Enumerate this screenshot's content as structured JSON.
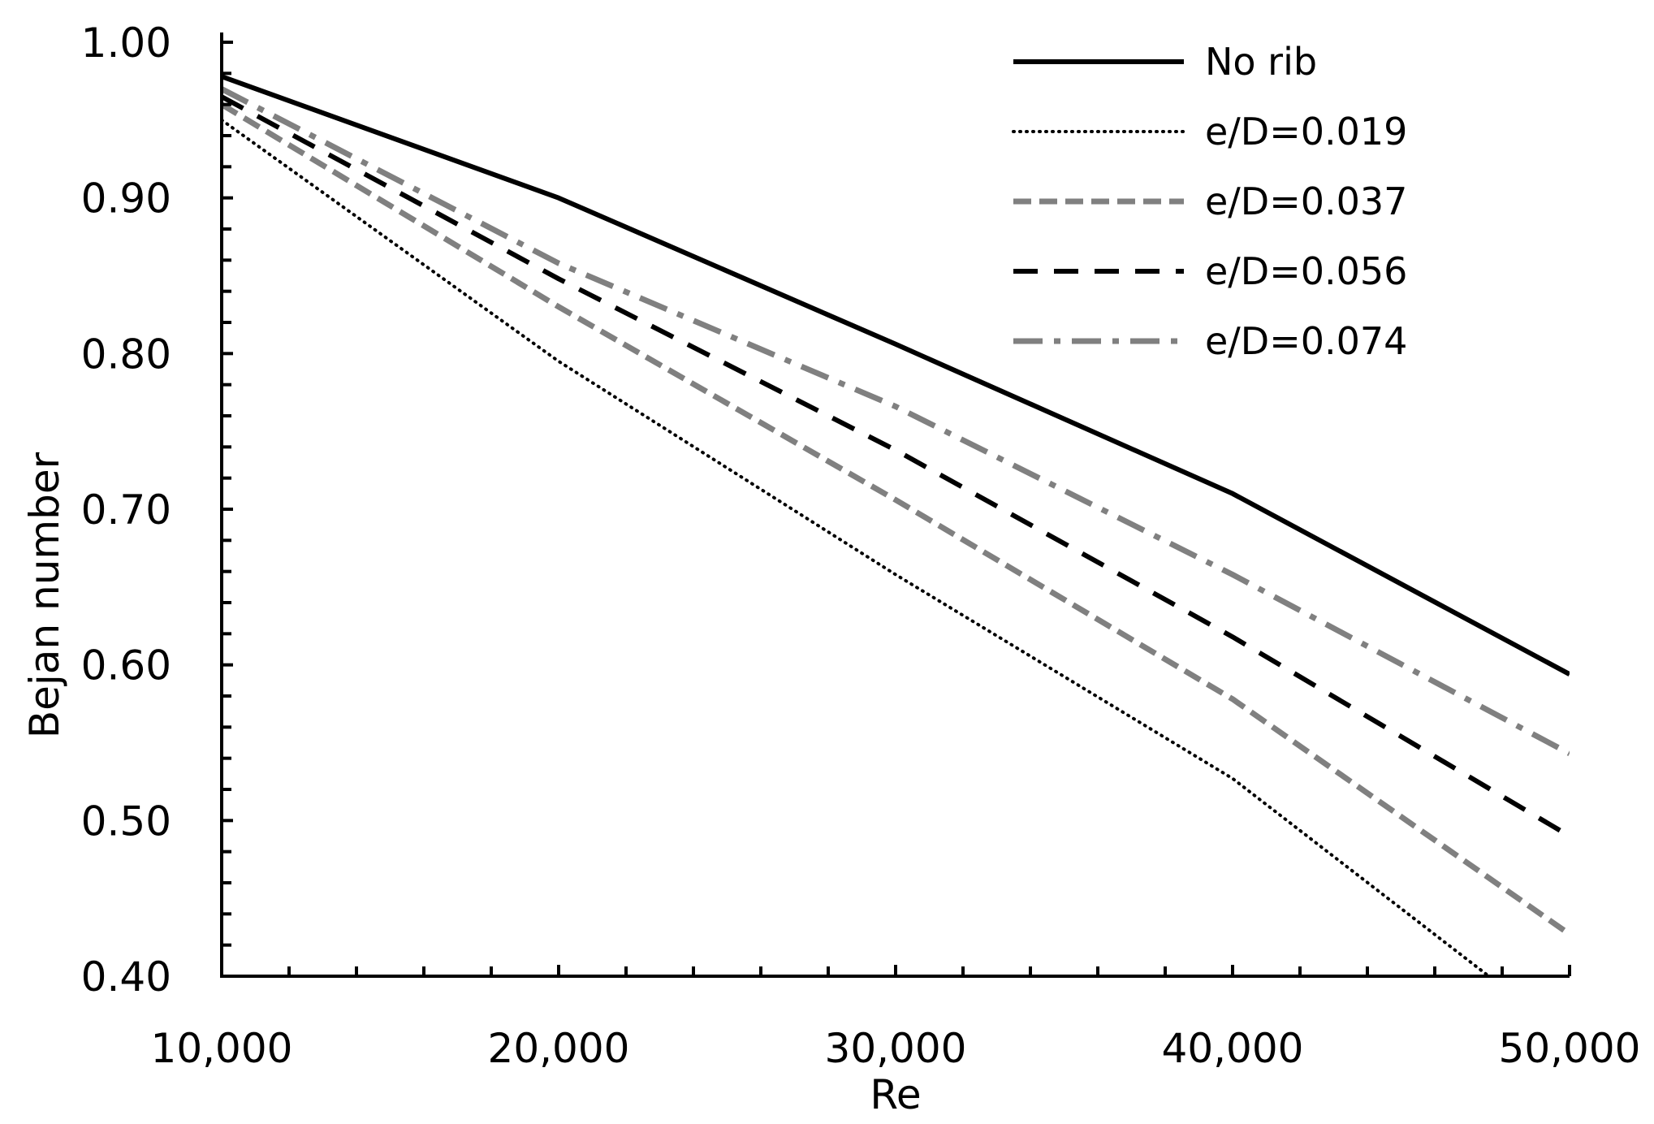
{
  "chart_data": {
    "type": "line",
    "title": "",
    "xlabel": "Re",
    "ylabel": "Bejan number",
    "xlim": [
      10000,
      50000
    ],
    "ylim": [
      0.4,
      1.0
    ],
    "x_ticks": [
      10000,
      20000,
      30000,
      40000,
      50000
    ],
    "x_tick_labels": [
      "10,000",
      "20,000",
      "30,000",
      "40,000",
      "50,000"
    ],
    "x_minor_step": 2000,
    "y_ticks": [
      0.4,
      0.5,
      0.6,
      0.7,
      0.8,
      0.9,
      1.0
    ],
    "y_tick_labels": [
      "0.40",
      "0.50",
      "0.60",
      "0.70",
      "0.80",
      "0.90",
      "1.00"
    ],
    "y_minor_step": 0.02,
    "grid": false,
    "legend_position": "top-right",
    "x": [
      10000,
      20000,
      30000,
      40000,
      50000
    ],
    "series": [
      {
        "name": "No rib",
        "values": [
          0.978,
          0.9,
          0.806,
          0.71,
          0.594
        ],
        "color": "#000000",
        "style": "solid"
      },
      {
        "name": "e/D=0.019",
        "values": [
          0.95,
          0.795,
          0.658,
          0.527,
          0.36
        ],
        "color": "#000000",
        "style": "dotted"
      },
      {
        "name": "e/D=0.037",
        "values": [
          0.96,
          0.83,
          0.706,
          0.578,
          0.427
        ],
        "color": "#808080",
        "style": "dashed-short"
      },
      {
        "name": "e/D=0.056",
        "values": [
          0.965,
          0.848,
          0.738,
          0.618,
          0.49
        ],
        "color": "#000000",
        "style": "dashed"
      },
      {
        "name": "e/D=0.074",
        "values": [
          0.97,
          0.858,
          0.766,
          0.658,
          0.543
        ],
        "color": "#808080",
        "style": "dash-dot"
      }
    ]
  }
}
